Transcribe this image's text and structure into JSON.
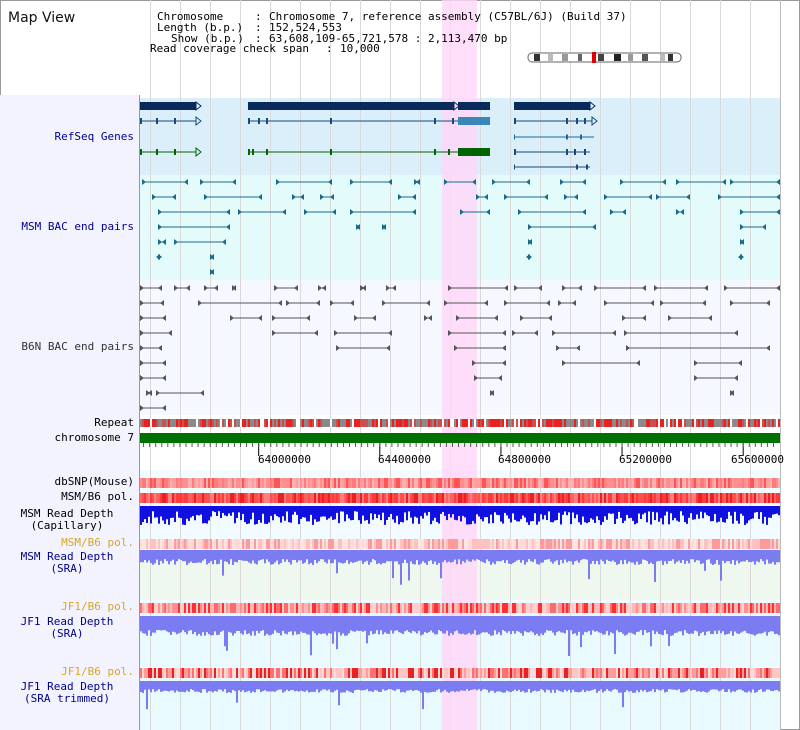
{
  "view_title": "Map View",
  "info": {
    "chromosome_key": "Chromosome",
    "chromosome_value": "Chromosome 7, reference assembly (C57BL/6J) (Build 37)",
    "length_key": "Length (b.p.)",
    "length_value": "152,524,553",
    "show_key": "Show (b.p.)",
    "show_value": "63,608,109-65,721,578 : 2,113,470 bp",
    "coverage_key": "Read coverage check span",
    "coverage_value": "10,000"
  },
  "tracks": {
    "refseq": "RefSeq Genes",
    "msm_bac": "MSM BAC end pairs",
    "b6n_bac": "B6N BAC end pairs",
    "repeat": "Repeat",
    "chromosome": "chromosome 7",
    "dbsnp": "dbSNP(Mouse)",
    "msm_b6_pol_1": "MSM/B6 pol.",
    "msm_depth_cap_1": "MSM Read Depth",
    "msm_depth_cap_2": "(Capillary)",
    "msm_b6_pol_2": "MSM/B6 pol.",
    "msm_depth_sra_1": "MSM Read Depth",
    "msm_depth_sra_2": "(SRA)",
    "jf1_b6_pol_1": "JF1/B6 pol.",
    "jf1_depth_sra_1": "JF1 Read Depth",
    "jf1_depth_sra_2": "(SRA)",
    "jf1_b6_pol_2": "JF1/B6 pol.",
    "jf1_depth_trim_1": "JF1 Read Depth",
    "jf1_depth_trim_2": "(SRA trimmed)"
  },
  "axis": {
    "unit": "bp",
    "range": [
      63608109,
      65721578
    ],
    "ticks": [
      "64000000",
      "64400000",
      "64800000",
      "65200000",
      "65600000"
    ]
  },
  "colors": {
    "label_blue": "#00008b",
    "label_orange": "#daa520",
    "label_black": "#000000",
    "highlight": "#ffd6f7",
    "refseq_bg": "#dbeffa",
    "msm_bg": "#e3fbfb",
    "b6n_bg": "#f6f8ff",
    "gene_dark": "#0a2a5c",
    "gene_green": "#006400",
    "gene_blue": "#3a86b8",
    "chromosome_bar": "#007000",
    "depth_dark": "#1010e0",
    "depth_light": "#7c7cf2"
  }
}
